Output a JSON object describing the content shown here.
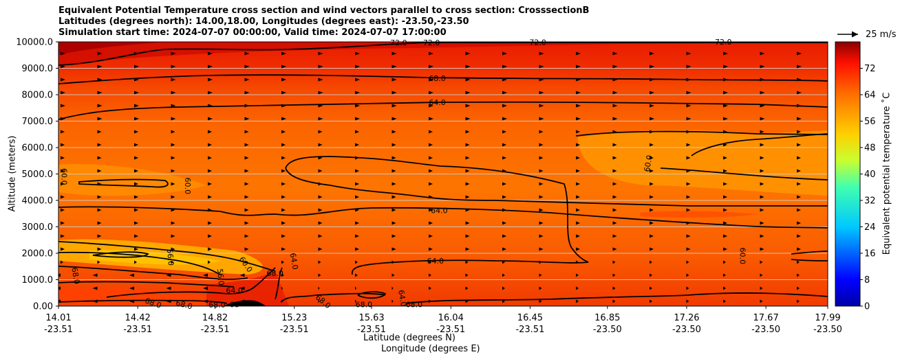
{
  "title": {
    "line1": "Equivalent Potential Temperature cross section and wind vectors parallel to cross section: CrosssectionB",
    "line2": "Latitudes (degrees north): 14.00,18.00, Longitudes (degrees east): -23.50,-23.50",
    "line3": "Simulation start time: 2024-07-07 00:00:00, Valid time: 2024-07-07 17:00:00"
  },
  "chart_data": {
    "type": "heatmap",
    "ylabel": "Altitude (meters)",
    "xlabel_lat": "Latitude (degrees N)",
    "xlabel_lon": "Longitude (degrees E)",
    "colorbar_label": "Equivalent potential temperature $^\\circ$C",
    "colorbar_label_display": "Equivalent potential temperature ˚C",
    "ylim": [
      0,
      10000
    ],
    "yticks": [
      "0.00",
      "1000.0",
      "2000.0",
      "3000.0",
      "4000.0",
      "5000.0",
      "6000.0",
      "7000.0",
      "8000.0",
      "9000.0",
      "10000.0"
    ],
    "ytick_values": [
      0,
      1000,
      2000,
      3000,
      4000,
      5000,
      6000,
      7000,
      8000,
      9000,
      10000
    ],
    "xlim": [
      14.01,
      17.99
    ],
    "xtick_values": [
      14.01,
      14.42,
      14.82,
      15.23,
      15.63,
      16.04,
      16.45,
      16.85,
      17.26,
      17.67,
      17.99
    ],
    "xticks_lat": [
      "14.01",
      "14.42",
      "14.82",
      "15.23",
      "15.63",
      "16.04",
      "16.45",
      "16.85",
      "17.26",
      "17.67",
      "17.99"
    ],
    "xticks_lon": [
      "-23.51",
      "-23.51",
      "-23.51",
      "-23.51",
      "-23.51",
      "-23.51",
      "-23.51",
      "-23.50",
      "-23.50",
      "-23.50",
      "-23.50"
    ],
    "colorbar_range": [
      0,
      80
    ],
    "colorbar_ticks": [
      "0",
      "8",
      "16",
      "24",
      "32",
      "40",
      "48",
      "56",
      "64",
      "72"
    ],
    "colorbar_tick_values": [
      0,
      8,
      16,
      24,
      32,
      40,
      48,
      56,
      64,
      72
    ],
    "wind_reference": "25 m/s",
    "contour_labels": [
      {
        "text": "72.0",
        "lat": 15.77,
        "alt": 9970
      },
      {
        "text": "72.0",
        "lat": 15.94,
        "alt": 9970
      },
      {
        "text": "72.0",
        "lat": 16.49,
        "alt": 9990
      },
      {
        "text": "72.0",
        "lat": 17.45,
        "alt": 10000
      },
      {
        "text": "68.0",
        "lat": 15.97,
        "alt": 8620
      },
      {
        "text": "64.0",
        "lat": 15.97,
        "alt": 7710
      },
      {
        "text": "60.0",
        "lat": 14.04,
        "alt": 4900,
        "rot": 90
      },
      {
        "text": "60.0",
        "lat": 14.68,
        "alt": 4550,
        "rot": 90
      },
      {
        "text": "60.0",
        "lat": 17.06,
        "alt": 5400,
        "rot": -80
      },
      {
        "text": "64.0",
        "lat": 15.98,
        "alt": 3620
      },
      {
        "text": "64.0",
        "lat": 15.96,
        "alt": 1710
      },
      {
        "text": "60.0",
        "lat": 17.55,
        "alt": 1900,
        "rot": 90
      },
      {
        "text": "56.0",
        "lat": 14.59,
        "alt": 1850,
        "rot": 85
      },
      {
        "text": "56.0",
        "lat": 14.85,
        "alt": 1100,
        "rot": 85
      },
      {
        "text": "60.0",
        "lat": 14.98,
        "alt": 1580,
        "rot": 55
      },
      {
        "text": "64.0",
        "lat": 15.23,
        "alt": 1700,
        "rot": 80
      },
      {
        "text": "68.0",
        "lat": 15.13,
        "alt": 1250
      },
      {
        "text": "68.0",
        "lat": 14.1,
        "alt": 1150,
        "rot": 80
      },
      {
        "text": "64.0",
        "lat": 14.92,
        "alt": 600
      },
      {
        "text": "68.0",
        "lat": 14.5,
        "alt": 120,
        "rot": 20
      },
      {
        "text": "68.0",
        "lat": 14.66,
        "alt": 60,
        "rot": 15
      },
      {
        "text": "68.0",
        "lat": 14.83,
        "alt": 50
      },
      {
        "text": "68",
        "lat": 14.92,
        "alt": 60
      },
      {
        "text": "68.0",
        "lat": 15.38,
        "alt": 180,
        "rot": 40
      },
      {
        "text": "68.0",
        "lat": 15.59,
        "alt": 60
      },
      {
        "text": "64.0",
        "lat": 15.79,
        "alt": 300,
        "rot": 80
      },
      {
        "text": "68.0",
        "lat": 15.85,
        "alt": 60
      }
    ]
  }
}
